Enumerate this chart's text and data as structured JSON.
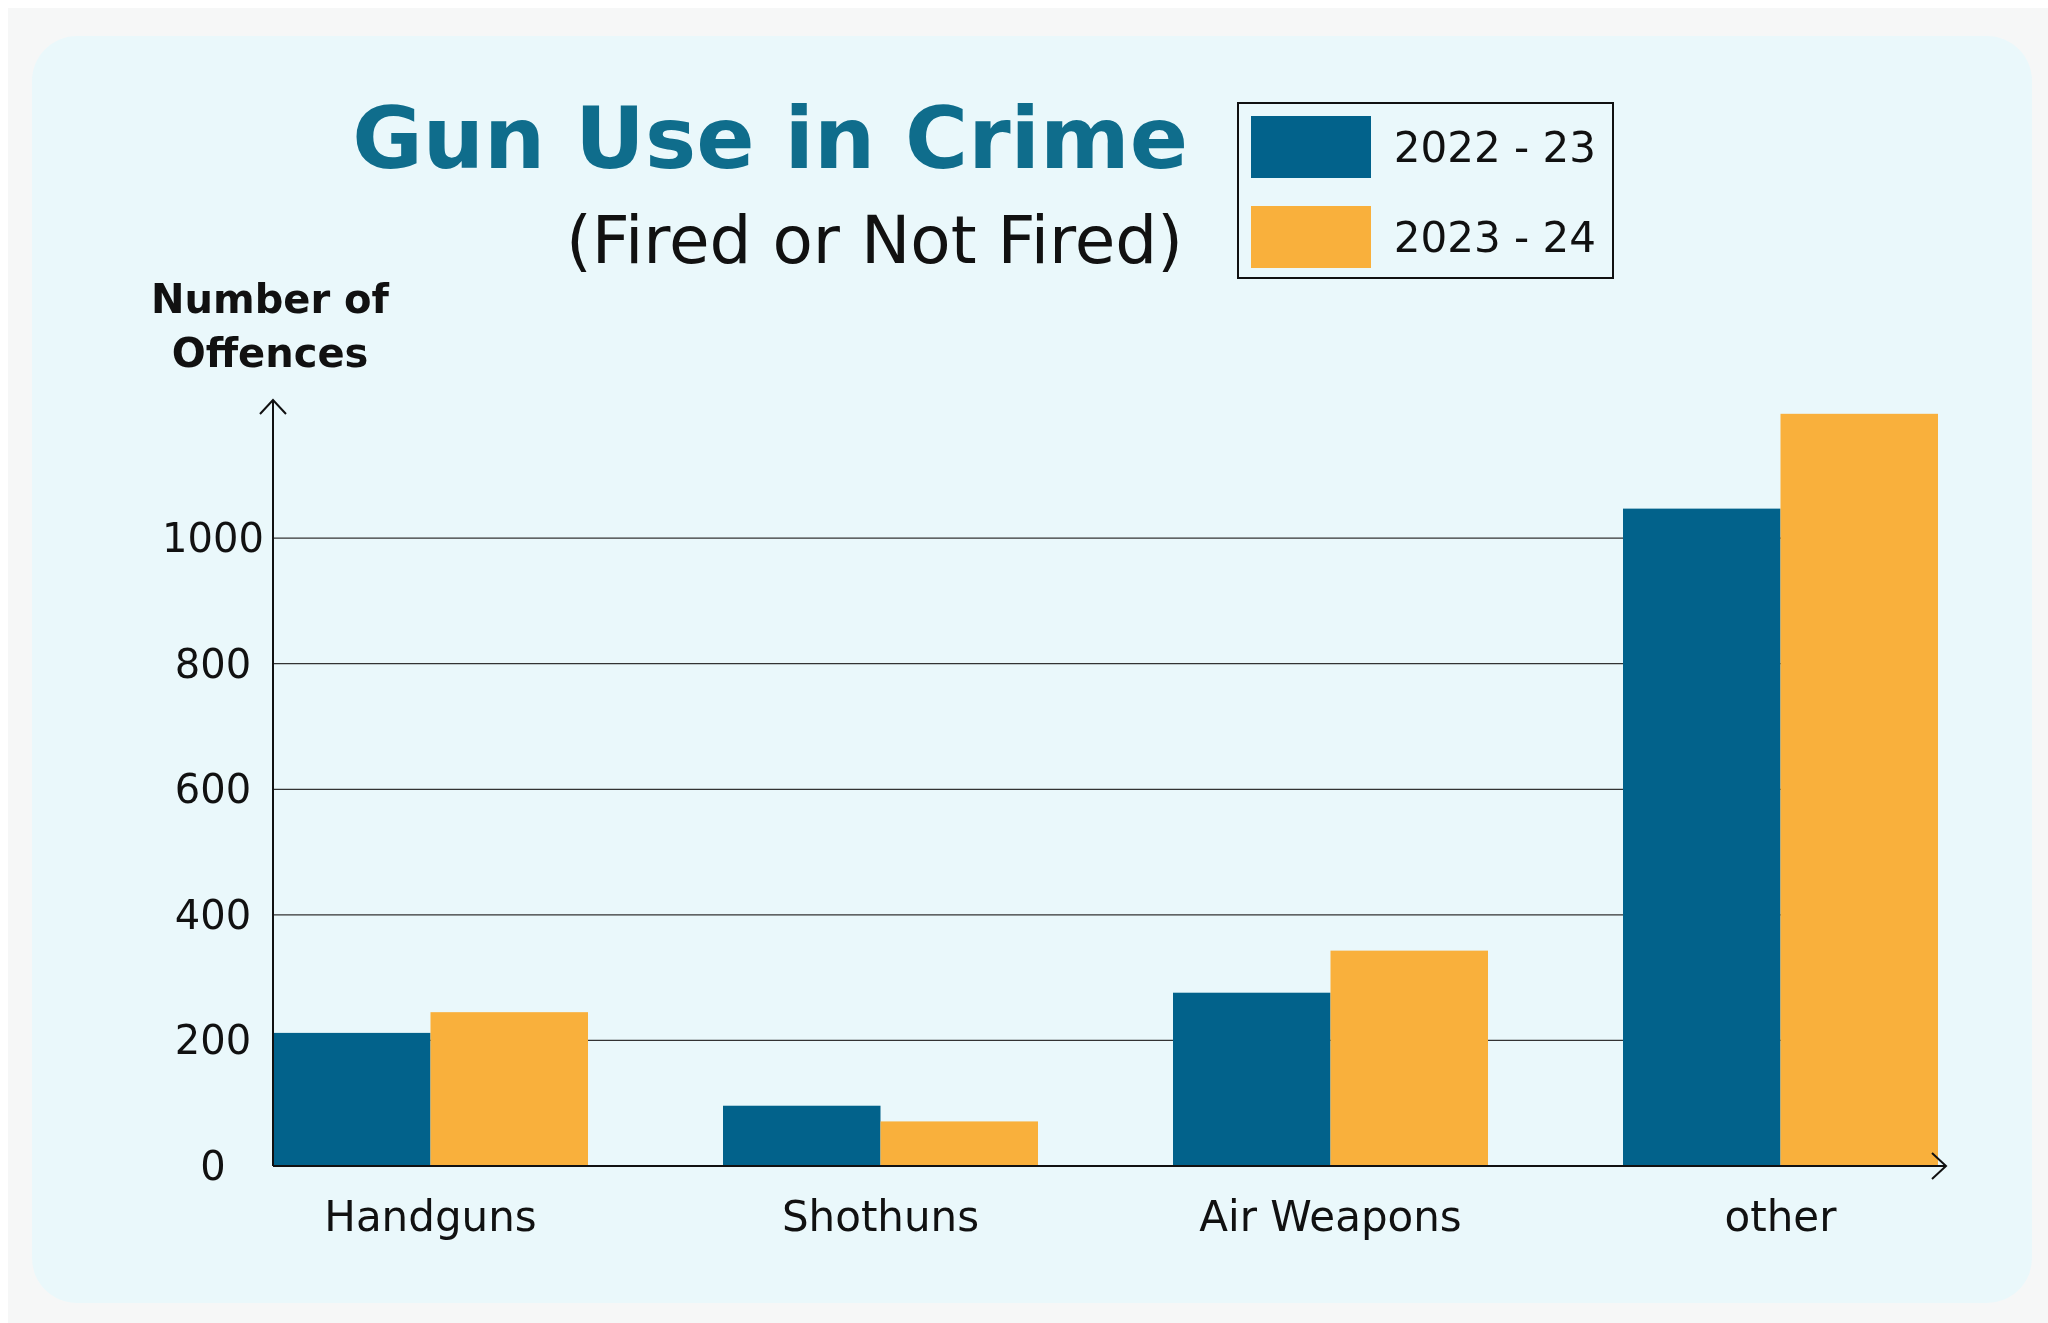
{
  "chart_data": {
    "type": "bar",
    "title": "Gun Use in Crime",
    "subtitle": "(Fired or Not Fired)",
    "ylabel": "Number of Offences",
    "categories": [
      "Handguns",
      "Shothuns",
      "Air Weapons",
      "other"
    ],
    "series": [
      {
        "name": "2022 - 23",
        "color": "#02628b",
        "values": [
          212,
          96,
          276,
          1047
        ]
      },
      {
        "name": "2023 - 24",
        "color": "#f9b03c",
        "values": [
          245,
          71,
          343,
          1198
        ]
      }
    ],
    "ylim": [
      0,
      1220
    ],
    "yticks": [
      0,
      200,
      400,
      600,
      800,
      1000
    ],
    "grid": "y",
    "legend": "top right"
  }
}
